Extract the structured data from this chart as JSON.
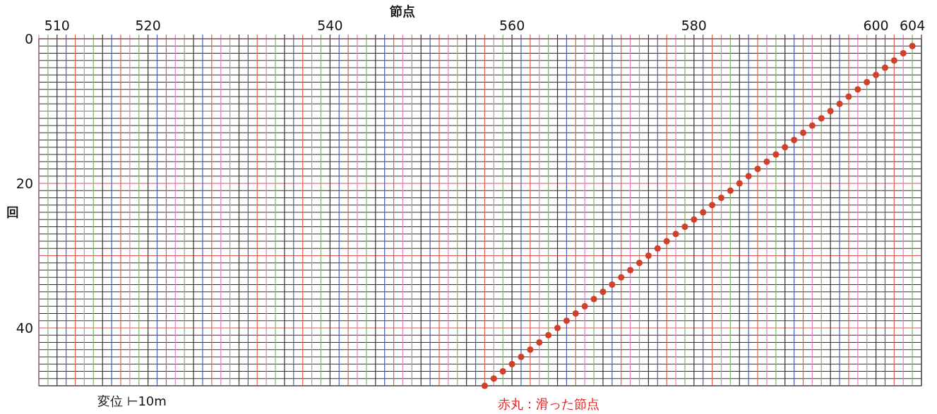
{
  "chart_data": {
    "type": "scatter",
    "xlabel": "節点",
    "ylabel": "回",
    "annotations": [
      "変位 ⊢10m",
      "赤丸：滑った節点"
    ],
    "xlim": [
      508,
      605
    ],
    "ylim": [
      48,
      0
    ],
    "xticks": [
      {
        "value": 508,
        "label": null
      },
      {
        "value": 509,
        "label": null
      },
      510,
      {
        "value": 511,
        "label": null
      },
      {
        "value": 512,
        "label": null
      },
      {
        "value": 513,
        "label": null
      },
      {
        "value": 514,
        "label": null
      },
      {
        "value": 515,
        "label": null
      },
      {
        "value": 516,
        "label": null
      },
      {
        "value": 517,
        "label": null
      },
      {
        "value": 518,
        "label": null
      },
      {
        "value": 519,
        "label": null
      },
      520,
      {
        "value": 521,
        "label": null
      },
      {
        "value": 522,
        "label": null
      },
      {
        "value": 523,
        "label": null
      },
      {
        "value": 524,
        "label": null
      },
      {
        "value": 525,
        "label": null
      },
      {
        "value": 526,
        "label": null
      },
      {
        "value": 527,
        "label": null
      },
      {
        "value": 528,
        "label": null
      },
      {
        "value": 529,
        "label": null
      },
      {
        "value": 530,
        "label": null
      },
      {
        "value": 531,
        "label": null
      },
      {
        "value": 532,
        "label": null
      },
      {
        "value": 533,
        "label": null
      },
      {
        "value": 534,
        "label": null
      },
      {
        "value": 535,
        "label": null
      },
      {
        "value": 536,
        "label": null
      },
      {
        "value": 537,
        "label": null
      },
      {
        "value": 538,
        "label": null
      },
      {
        "value": 539,
        "label": null
      },
      540,
      {
        "value": 541,
        "label": null
      },
      {
        "value": 542,
        "label": null
      },
      {
        "value": 543,
        "label": null
      },
      {
        "value": 544,
        "label": null
      },
      {
        "value": 545,
        "label": null
      },
      {
        "value": 546,
        "label": null
      },
      {
        "value": 547,
        "label": null
      },
      {
        "value": 548,
        "label": null
      },
      {
        "value": 549,
        "label": null
      },
      {
        "value": 550,
        "label": null
      },
      {
        "value": 551,
        "label": null
      },
      {
        "value": 552,
        "label": null
      },
      {
        "value": 553,
        "label": null
      },
      {
        "value": 554,
        "label": null
      },
      {
        "value": 555,
        "label": null
      },
      {
        "value": 556,
        "label": null
      },
      {
        "value": 557,
        "label": null
      },
      {
        "value": 558,
        "label": null
      },
      {
        "value": 559,
        "label": null
      },
      560,
      {
        "value": 561,
        "label": null
      },
      {
        "value": 562,
        "label": null
      },
      {
        "value": 563,
        "label": null
      },
      {
        "value": 564,
        "label": null
      },
      {
        "value": 565,
        "label": null
      },
      {
        "value": 566,
        "label": null
      },
      {
        "value": 567,
        "label": null
      },
      {
        "value": 568,
        "label": null
      },
      {
        "value": 569,
        "label": null
      },
      {
        "value": 570,
        "label": null
      },
      {
        "value": 571,
        "label": null
      },
      {
        "value": 572,
        "label": null
      },
      {
        "value": 573,
        "label": null
      },
      {
        "value": 574,
        "label": null
      },
      {
        "value": 575,
        "label": null
      },
      {
        "value": 576,
        "label": null
      },
      {
        "value": 577,
        "label": null
      },
      {
        "value": 578,
        "label": null
      },
      {
        "value": 579,
        "label": null
      },
      580,
      {
        "value": 581,
        "label": null
      },
      {
        "value": 582,
        "label": null
      },
      {
        "value": 583,
        "label": null
      },
      {
        "value": 584,
        "label": null
      },
      {
        "value": 585,
        "label": null
      },
      {
        "value": 586,
        "label": null
      },
      {
        "value": 587,
        "label": null
      },
      {
        "value": 588,
        "label": null
      },
      {
        "value": 589,
        "label": null
      },
      {
        "value": 590,
        "label": null
      },
      {
        "value": 591,
        "label": null
      },
      {
        "value": 592,
        "label": null
      },
      {
        "value": 593,
        "label": null
      },
      {
        "value": 594,
        "label": null
      },
      {
        "value": 595,
        "label": null
      },
      {
        "value": 596,
        "label": null
      },
      {
        "value": 597,
        "label": null
      },
      {
        "value": 598,
        "label": null
      },
      {
        "value": 599,
        "label": null
      },
      600,
      {
        "value": 601,
        "label": null
      },
      {
        "value": 602,
        "label": null
      },
      {
        "value": 603,
        "label": null
      },
      604,
      {
        "value": 605,
        "label": null
      }
    ],
    "yticks": [
      0,
      {
        "value": 1,
        "label": null
      },
      {
        "value": 2,
        "label": null
      },
      {
        "value": 3,
        "label": null
      },
      {
        "value": 4,
        "label": null
      },
      {
        "value": 5,
        "label": null
      },
      {
        "value": 6,
        "label": null
      },
      {
        "value": 7,
        "label": null
      },
      {
        "value": 8,
        "label": null
      },
      {
        "value": 9,
        "label": null
      },
      {
        "value": 10,
        "label": null
      },
      {
        "value": 11,
        "label": null
      },
      {
        "value": 12,
        "label": null
      },
      {
        "value": 13,
        "label": null
      },
      {
        "value": 14,
        "label": null
      },
      {
        "value": 15,
        "label": null
      },
      {
        "value": 16,
        "label": null
      },
      {
        "value": 17,
        "label": null
      },
      {
        "value": 18,
        "label": null
      },
      {
        "value": 19,
        "label": null
      },
      20,
      {
        "value": 21,
        "label": null
      },
      {
        "value": 22,
        "label": null
      },
      {
        "value": 23,
        "label": null
      },
      {
        "value": 24,
        "label": null
      },
      {
        "value": 25,
        "label": null
      },
      {
        "value": 26,
        "label": null
      },
      {
        "value": 27,
        "label": null
      },
      {
        "value": 28,
        "label": null
      },
      {
        "value": 29,
        "label": null
      },
      {
        "value": 30,
        "label": null
      },
      {
        "value": 31,
        "label": null
      },
      {
        "value": 32,
        "label": null
      },
      {
        "value": 33,
        "label": null
      },
      {
        "value": 34,
        "label": null
      },
      {
        "value": 35,
        "label": null
      },
      {
        "value": 36,
        "label": null
      },
      {
        "value": 37,
        "label": null
      },
      {
        "value": 38,
        "label": null
      },
      {
        "value": 39,
        "label": null
      },
      40,
      {
        "value": 41,
        "label": null
      },
      {
        "value": 42,
        "label": null
      },
      {
        "value": 43,
        "label": null
      },
      {
        "value": 44,
        "label": null
      },
      {
        "value": 45,
        "label": null
      },
      {
        "value": 46,
        "label": null
      },
      {
        "value": 47,
        "label": null
      },
      {
        "value": 48,
        "label": null
      }
    ],
    "grid": true,
    "marker": "circle",
    "series": [
      {
        "color": "#d0402a",
        "x": [
          604,
          603,
          602,
          601,
          600,
          599,
          598,
          597,
          596,
          595,
          594,
          593,
          592,
          591,
          590,
          589,
          588,
          587,
          586,
          585,
          584,
          583,
          582,
          581,
          580,
          579,
          578,
          577,
          576,
          575,
          574,
          573,
          572,
          571,
          570,
          569,
          568,
          567,
          566,
          565,
          564,
          563,
          562,
          561,
          560,
          559,
          558,
          557
        ],
        "values": [
          1,
          2,
          3,
          4,
          5,
          6,
          7,
          8,
          9,
          10,
          11,
          12,
          13,
          14,
          15,
          16,
          17,
          18,
          19,
          20,
          21,
          22,
          23,
          24,
          25,
          26,
          27,
          28,
          29,
          30,
          31,
          32,
          33,
          34,
          35,
          36,
          37,
          38,
          39,
          40,
          41,
          42,
          43,
          44,
          45,
          46,
          47,
          48
        ]
      }
    ]
  }
}
